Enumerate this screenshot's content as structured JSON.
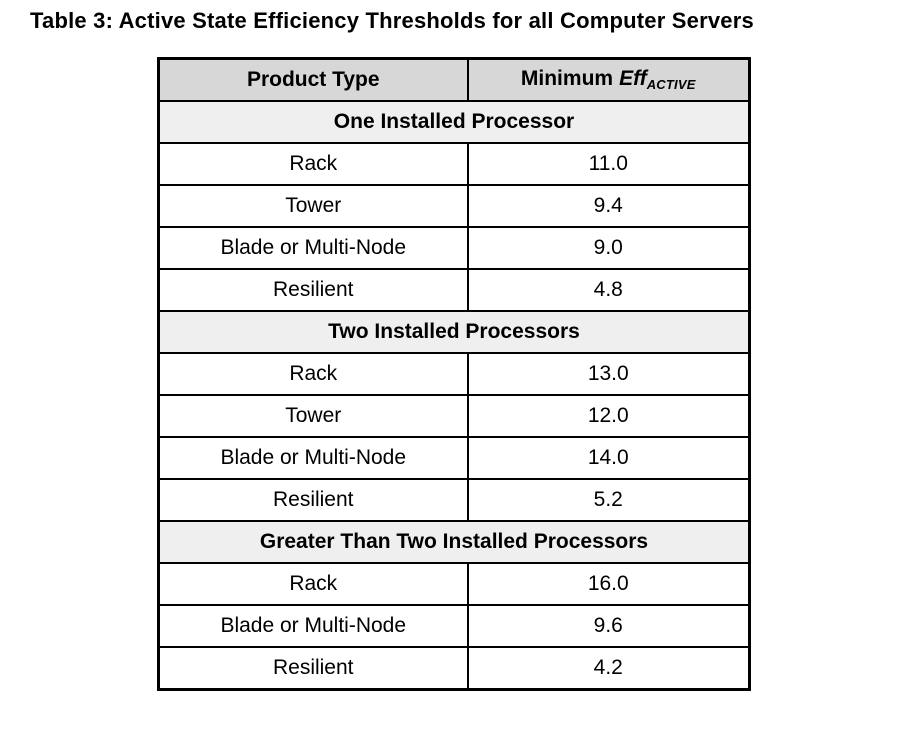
{
  "document": {
    "title": "Table 3: Active State Efficiency Thresholds for all Computer Servers"
  },
  "table": {
    "header": {
      "product_type": "Product Type",
      "min_eff_prefix": "Minimum",
      "min_eff_term": "Eff",
      "min_eff_subscript": "ACTIVE"
    },
    "sections": [
      {
        "label": "One Installed Processor",
        "rows": [
          [
            "Rack",
            "11.0"
          ],
          [
            "Tower",
            "9.4"
          ],
          [
            "Blade or Multi-Node",
            "9.0"
          ],
          [
            "Resilient",
            "4.8"
          ]
        ]
      },
      {
        "label": "Two Installed Processors",
        "rows": [
          [
            "Rack",
            "13.0"
          ],
          [
            "Tower",
            "12.0"
          ],
          [
            "Blade or Multi-Node",
            "14.0"
          ],
          [
            "Resilient",
            "5.2"
          ]
        ]
      },
      {
        "label": "Greater Than Two Installed Processors",
        "rows": [
          [
            "Rack",
            "16.0"
          ],
          [
            "Blade or Multi-Node",
            "9.6"
          ],
          [
            "Resilient",
            "4.2"
          ]
        ]
      }
    ],
    "colors": {
      "header_bg": "#d7d7d7",
      "section_bg": "#f0efef",
      "border": "#000000",
      "text": "#000000"
    }
  }
}
